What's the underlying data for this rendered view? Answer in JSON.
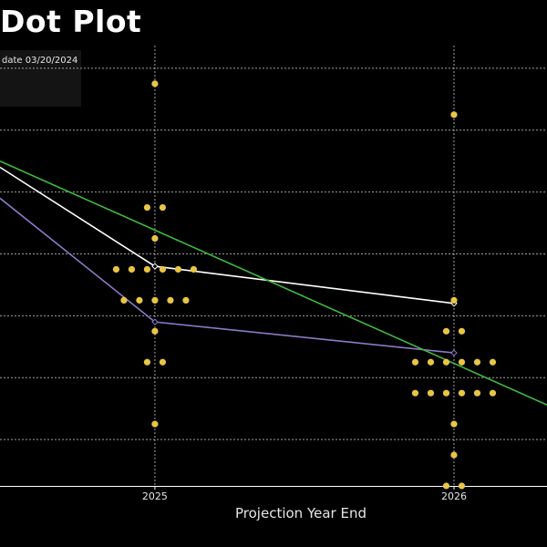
{
  "chart_data": {
    "type": "scatter",
    "title": "Dot Plot",
    "legend_text": "date 03/20/2024",
    "xlabel": "Projection Year End",
    "ylabel": "",
    "x_ticks": [
      "2025",
      "2026"
    ],
    "x_tick_values": [
      2025,
      2026
    ],
    "xlim": [
      2024.482,
      2026.311
    ],
    "ylim": [
      1.625,
      5.375
    ],
    "grid": true,
    "dots": {
      "name": "",
      "color": "#e8c547",
      "points": [
        {
          "x": 2025,
          "y": 4.875
        },
        {
          "x": 2025,
          "y": 3.875
        },
        {
          "x": 2025,
          "y": 3.875
        },
        {
          "x": 2025,
          "y": 3.625
        },
        {
          "x": 2025,
          "y": 3.375
        },
        {
          "x": 2025,
          "y": 3.375
        },
        {
          "x": 2025,
          "y": 3.375
        },
        {
          "x": 2025,
          "y": 3.375
        },
        {
          "x": 2025,
          "y": 3.375
        },
        {
          "x": 2025,
          "y": 3.375
        },
        {
          "x": 2025,
          "y": 3.125
        },
        {
          "x": 2025,
          "y": 3.125
        },
        {
          "x": 2025,
          "y": 3.125
        },
        {
          "x": 2025,
          "y": 3.125
        },
        {
          "x": 2025,
          "y": 3.125
        },
        {
          "x": 2025,
          "y": 2.875
        },
        {
          "x": 2025,
          "y": 2.625
        },
        {
          "x": 2025,
          "y": 2.625
        },
        {
          "x": 2025,
          "y": 2.125
        },
        {
          "x": 2026,
          "y": 4.625
        },
        {
          "x": 2026,
          "y": 3.125
        },
        {
          "x": 2026,
          "y": 2.875
        },
        {
          "x": 2026,
          "y": 2.875
        },
        {
          "x": 2026,
          "y": 2.625
        },
        {
          "x": 2026,
          "y": 2.625
        },
        {
          "x": 2026,
          "y": 2.625
        },
        {
          "x": 2026,
          "y": 2.625
        },
        {
          "x": 2026,
          "y": 2.625
        },
        {
          "x": 2026,
          "y": 2.625
        },
        {
          "x": 2026,
          "y": 2.375
        },
        {
          "x": 2026,
          "y": 2.375
        },
        {
          "x": 2026,
          "y": 2.375
        },
        {
          "x": 2026,
          "y": 2.375
        },
        {
          "x": 2026,
          "y": 2.375
        },
        {
          "x": 2026,
          "y": 2.375
        },
        {
          "x": 2026,
          "y": 2.125
        },
        {
          "x": 2026,
          "y": 1.875
        },
        {
          "x": 2026,
          "y": 1.625
        },
        {
          "x": 2026,
          "y": 1.625
        }
      ]
    },
    "series": [
      {
        "name": "",
        "color": "#ffffff",
        "marker": "diamond",
        "x": [
          2024.482,
          2025,
          2026
        ],
        "y": [
          4.2,
          3.4,
          3.1
        ]
      },
      {
        "name": "",
        "color": "#8e79c7",
        "marker": "diamond",
        "x": [
          2024.482,
          2025,
          2026
        ],
        "y": [
          3.95,
          2.95,
          2.7
        ]
      },
      {
        "name": "",
        "color": "#3fb83f",
        "marker": "none",
        "x": [
          2024.482,
          2026.311
        ],
        "y": [
          4.25,
          2.28
        ]
      }
    ]
  }
}
